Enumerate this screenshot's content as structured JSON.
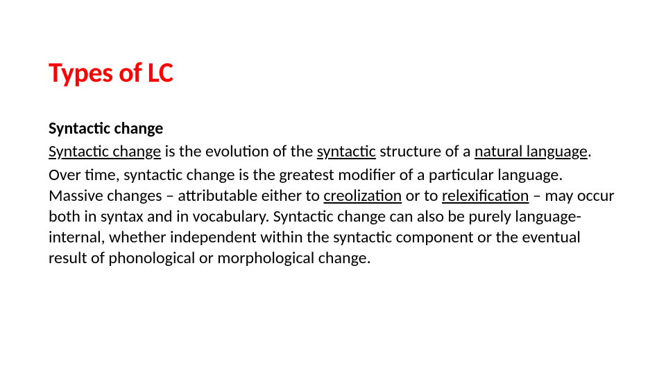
{
  "title": "Types of LC",
  "subtitle": "Syntactic change",
  "p1_span1": "Syntactic change",
  "p1_span2": " is the evolution of the ",
  "p1_span3": "syntactic",
  "p1_span4": " structure of a ",
  "p1_span5": "natural language",
  "p1_span6": ".",
  "p2_span1": "Over time, syntactic change is the greatest modifier of a particular language. Massive changes – attributable either to ",
  "p2_span2": "creolization",
  "p2_span3": " or to ",
  "p2_span4": "relexification",
  "p2_span5": " – may occur both in syntax and in vocabulary. Syntactic change can also be purely language-internal, whether independent within the syntactic component or the eventual result of phonological or morphological change.",
  "colors": {
    "title": "#ff0000",
    "text": "#000000",
    "background": "#ffffff"
  },
  "fontsize": {
    "title": 40,
    "body": 24
  }
}
